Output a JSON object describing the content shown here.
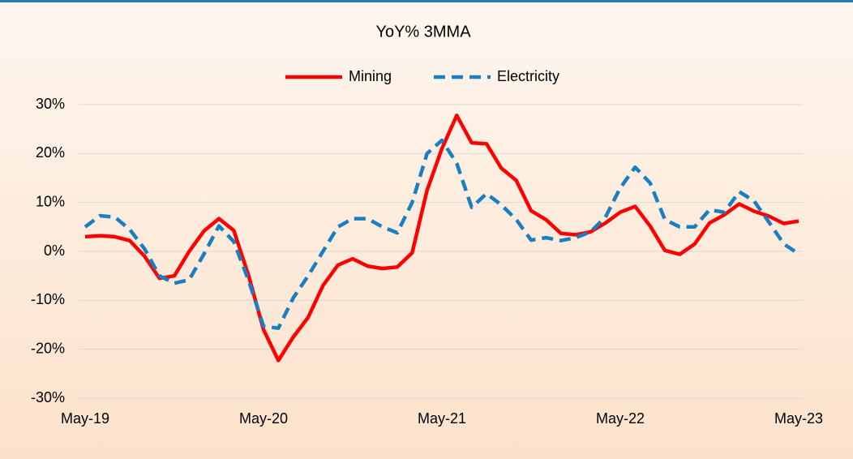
{
  "chart_data": {
    "type": "line",
    "title": "YoY% 3MMA",
    "categories": [
      "May-19",
      null,
      null,
      null,
      null,
      null,
      null,
      null,
      null,
      null,
      null,
      null,
      "May-20",
      null,
      null,
      null,
      null,
      null,
      null,
      null,
      null,
      null,
      null,
      null,
      "May-21",
      null,
      null,
      null,
      null,
      null,
      null,
      null,
      null,
      null,
      null,
      null,
      "May-22",
      null,
      null,
      null,
      null,
      null,
      null,
      null,
      null,
      null,
      null,
      null,
      "May-23"
    ],
    "series": [
      {
        "name": "Mining",
        "color": "#ff0000",
        "dash": false,
        "values": [
          3.0,
          3.2,
          3.0,
          2.2,
          -1.0,
          -5.5,
          -5.0,
          0,
          4.2,
          6.7,
          4.3,
          -5,
          -16,
          -22.3,
          -17.5,
          -13.5,
          -7,
          -2.8,
          -1.5,
          -3,
          -3.5,
          -3.2,
          -0.3,
          12.5,
          21,
          27.8,
          22.2,
          22,
          17,
          14.5,
          8.3,
          6.5,
          3.7,
          3.4,
          4.0,
          5.8,
          8.0,
          9.2,
          5.2,
          0.2,
          -0.6,
          1.5,
          5.8,
          7.5,
          9.7,
          8.2,
          7.2,
          5.7,
          6.2
        ]
      },
      {
        "name": "Electricity",
        "color": "#1a7ec0",
        "dash": true,
        "values": [
          5,
          7.3,
          7.0,
          4.5,
          0.5,
          -5.0,
          -6.5,
          -5.8,
          -0.5,
          5.2,
          2.0,
          -6,
          -15.3,
          -15.7,
          -9.5,
          -5,
          0,
          5,
          6.7,
          6.7,
          5.0,
          3.8,
          10,
          20,
          22.7,
          18,
          9,
          11.8,
          9.5,
          6.5,
          2.3,
          2.8,
          2.2,
          2.8,
          4,
          7,
          13,
          17.2,
          14,
          6.5,
          5.0,
          5.0,
          8.5,
          8.0,
          12.2,
          10.3,
          6.0,
          1.5,
          -0.5
        ]
      }
    ],
    "ylim": [
      -30,
      30
    ],
    "yticks": [
      {
        "value": -30,
        "label": "-30%"
      },
      {
        "value": -20,
        "label": "-20%"
      },
      {
        "value": -10,
        "label": "-10%"
      },
      {
        "value": 0,
        "label": "0%"
      },
      {
        "value": 10,
        "label": "10%"
      },
      {
        "value": 20,
        "label": "20%"
      },
      {
        "value": 30,
        "label": "30%"
      }
    ],
    "grid": true,
    "legend": "top"
  }
}
